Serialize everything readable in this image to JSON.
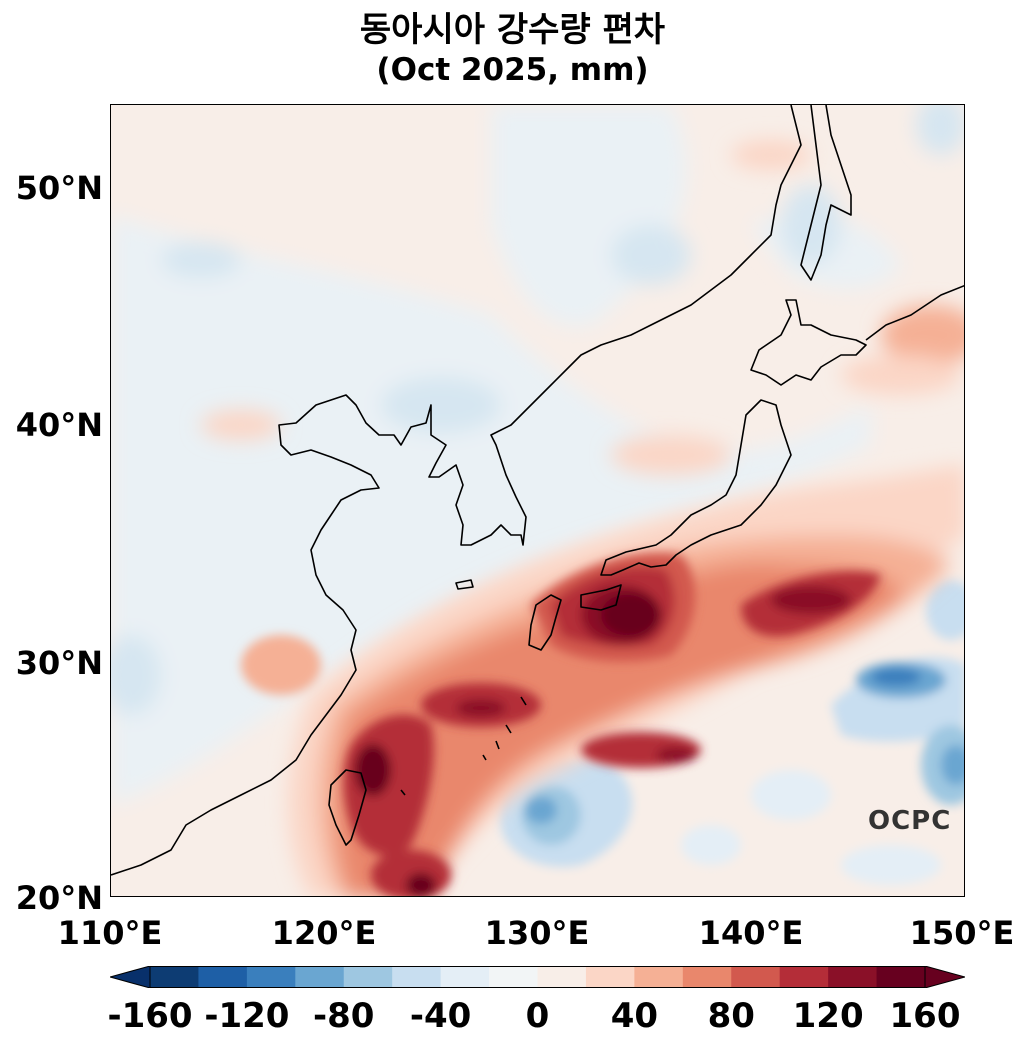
{
  "title": "동아시아 강수량 편차",
  "subtitle": "(Oct 2025, mm)",
  "watermark": "OCPC",
  "map": {
    "type": "filled-contour",
    "variable": "precipitation anomaly",
    "lon_range": [
      110,
      150
    ],
    "lat_range": [
      20,
      53
    ],
    "lat_ticks": [
      "50°N",
      "40°N",
      "30°N",
      "20°N"
    ],
    "lon_ticks": [
      "110°E",
      "120°E",
      "130°E",
      "140°E",
      "150°E"
    ],
    "coastlines": true
  },
  "colorbar": {
    "tick_labels": [
      "-160",
      "-120",
      "-80",
      "-40",
      "0",
      "40",
      "80",
      "120",
      "160"
    ],
    "extend": "both",
    "colors": [
      "#0d3c73",
      "#1e5fa6",
      "#3a7fbd",
      "#6aa6d1",
      "#9ec7e1",
      "#c8def0",
      "#e4eef6",
      "#f2f5f6",
      "#f8eee8",
      "#fbd6c6",
      "#f5b095",
      "#e9876c",
      "#d2594e",
      "#b42d38",
      "#8a1028",
      "#67001f"
    ],
    "colors_min_extend": "#08306b",
    "colors_max_extend": "#67001f"
  }
}
